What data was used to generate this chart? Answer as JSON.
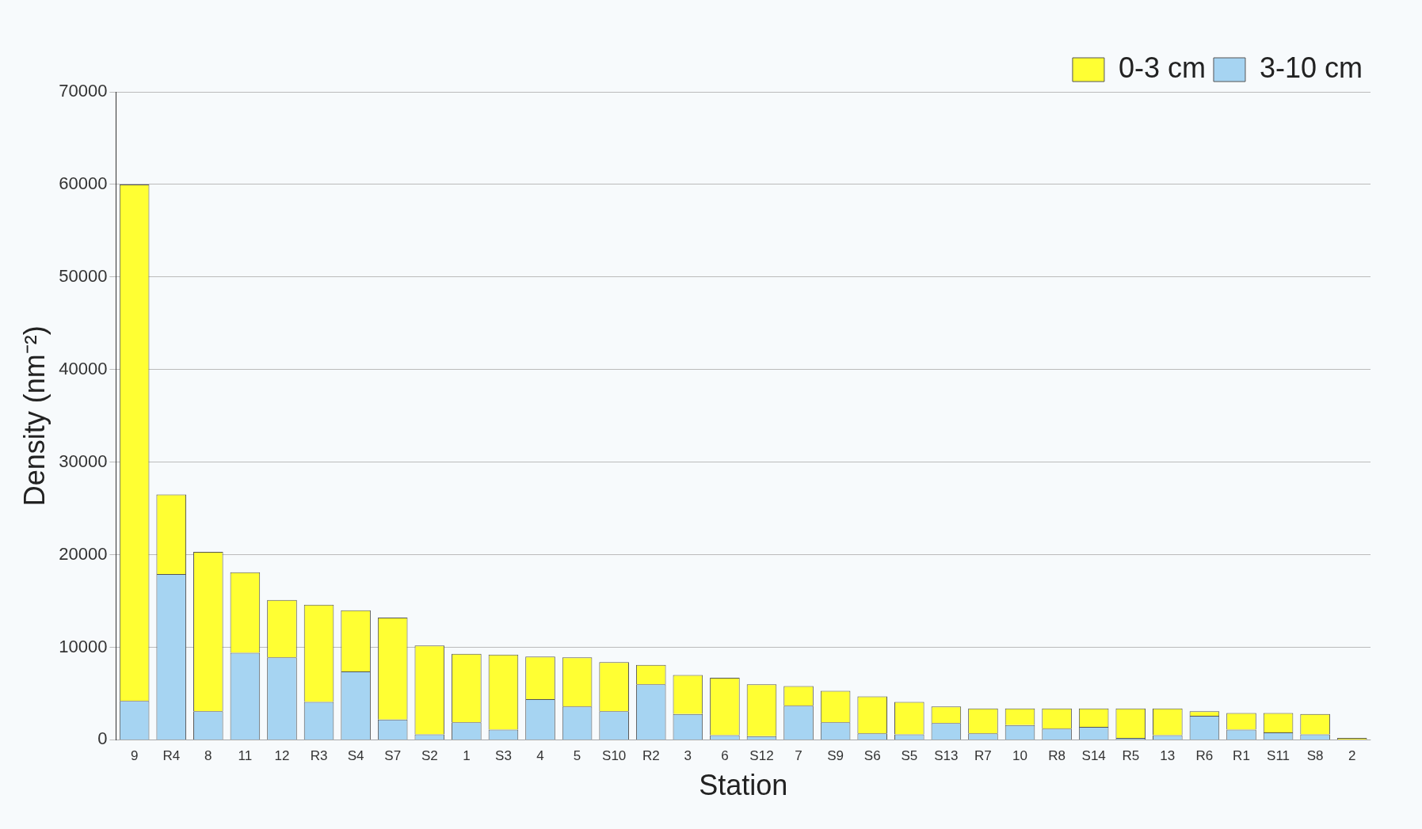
{
  "chart_data": {
    "type": "bar",
    "stacked": true,
    "xlabel": "Station",
    "ylabel": "Density (nm⁻²)",
    "categories": [
      "9",
      "R4",
      "8",
      "11",
      "12",
      "R3",
      "S4",
      "S7",
      "S2",
      "1",
      "S3",
      "4",
      "5",
      "S10",
      "R2",
      "3",
      "6",
      "S12",
      "7",
      "S9",
      "S6",
      "S5",
      "S13",
      "R7",
      "10",
      "R8",
      "S14",
      "R5",
      "13",
      "R6",
      "R1",
      "S11",
      "S8",
      "2"
    ],
    "series": [
      {
        "name": "3-10 cm",
        "color": "#a6d4f2",
        "values": [
          4200,
          17900,
          3100,
          9400,
          8900,
          4100,
          7400,
          2200,
          600,
          1900,
          1100,
          4400,
          3600,
          3100,
          6000,
          2800,
          500,
          400,
          3700,
          1900,
          700,
          600,
          1800,
          700,
          1600,
          1200,
          1400,
          200,
          500,
          2600,
          1100,
          800,
          600,
          0
        ]
      },
      {
        "name": "0-3 cm",
        "color": "#ffff33",
        "values": [
          55800,
          8600,
          17200,
          8700,
          6200,
          10500,
          6600,
          11000,
          9600,
          7400,
          8100,
          4600,
          5300,
          5300,
          2100,
          4200,
          6200,
          5600,
          2100,
          3400,
          4000,
          3500,
          1800,
          2700,
          1800,
          2200,
          2000,
          3200,
          2900,
          500,
          1800,
          2100,
          2200,
          200
        ]
      }
    ],
    "ylim": [
      0,
      70000
    ],
    "yticks": [
      0,
      10000,
      20000,
      30000,
      40000,
      50000,
      60000,
      70000
    ],
    "grid": "y",
    "legend": "top right"
  }
}
